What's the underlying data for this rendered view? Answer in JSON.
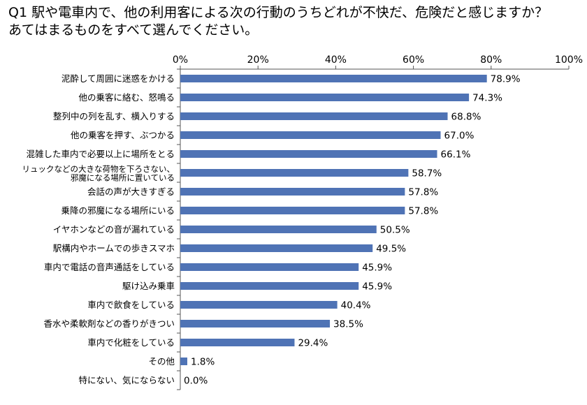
{
  "chart_data": {
    "type": "bar",
    "orientation": "horizontal",
    "title": [
      "Q1 駅や電車内で、他の利用客による次の行動のうちどれが不快だ、危険だと感じますか？",
      "あてはまるものをすべて選んでください。"
    ],
    "xlim": [
      0,
      100
    ],
    "ticks": [
      "0%",
      "20%",
      "40%",
      "60%",
      "80%",
      "100%"
    ],
    "tick_values": [
      0,
      20,
      40,
      60,
      80,
      100
    ],
    "categories": [
      "泥酔して周囲に迷惑をかける",
      "他の乗客に絡む、怒鳴る",
      "整列中の列を乱す、横入りする",
      "他の乗客を押す、ぶつかる",
      "混雑した車内で必要以上に場所をとる",
      "リュックなどの大きな荷物を下ろさない、\n邪魔になる場所に置いている",
      "会話の声が大きすぎる",
      "乗降の邪魔になる場所にいる",
      "イヤホンなどの音が漏れている",
      "駅構内やホームでの歩きスマホ",
      "車内で電話の音声通話をしている",
      "駆け込み乗車",
      "車内で飲食をしている",
      "香水や柔軟剤などの香りがきつい",
      "車内で化粧をしている",
      "その他",
      "特にない、気にならない"
    ],
    "values": [
      78.9,
      74.3,
      68.8,
      67.0,
      66.1,
      58.7,
      57.8,
      57.8,
      50.5,
      49.5,
      45.9,
      45.9,
      40.4,
      38.5,
      29.4,
      1.8,
      0.0
    ],
    "value_labels": [
      "78.9%",
      "74.3%",
      "68.8%",
      "67.0%",
      "66.1%",
      "58.7%",
      "57.8%",
      "57.8%",
      "50.5%",
      "49.5%",
      "45.9%",
      "45.9%",
      "40.4%",
      "38.5%",
      "29.4%",
      "1.8%",
      "0.0%"
    ],
    "bar_color": "#4f73b5",
    "grid": false,
    "legend": "none"
  }
}
